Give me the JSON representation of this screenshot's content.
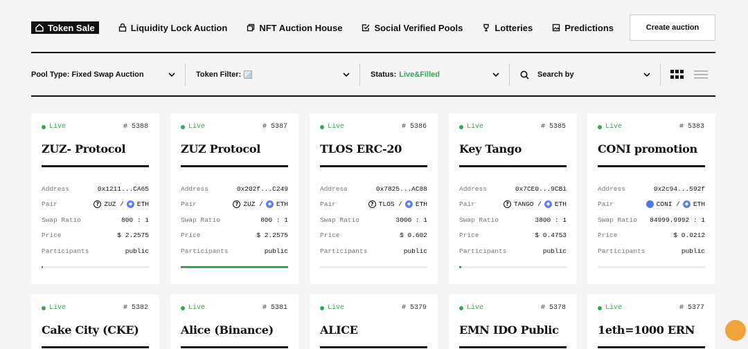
{
  "nav": {
    "tabs": [
      {
        "label": "Token Sale",
        "icon": "home-icon"
      },
      {
        "label": "Liquidity Lock Auction",
        "icon": "lock-icon"
      },
      {
        "label": "NFT Auction House",
        "icon": "nft-icon"
      },
      {
        "label": "Social Verified Pools",
        "icon": "check-square-icon"
      },
      {
        "label": "Lotteries",
        "icon": "trophy-icon"
      },
      {
        "label": "Predictions",
        "icon": "image-icon"
      }
    ],
    "create_label": "Create auction"
  },
  "filters": {
    "pool_type_label": "Pool Type: Fixed Swap Auction",
    "token_filter_label": "Token Filter:",
    "status_label": "Status:",
    "status_value": "Live&Filled",
    "search_label": "Search by"
  },
  "colors": {
    "live": "#2fa84f",
    "fab": "#f2a33a"
  },
  "cards": [
    {
      "status": "Live",
      "number": "# 5388",
      "title": "ZUZ- Protocol",
      "address": "0x1211...CA65",
      "pair_token": "ZUZ",
      "pair_base": "ETH",
      "ratio": "800 : 1",
      "price": "$ 2.2575",
      "participants": "public",
      "progress": 0.01
    },
    {
      "status": "Live",
      "number": "# 5387",
      "title": "ZUZ Protocol",
      "address": "0x202f...C249",
      "pair_token": "ZUZ",
      "pair_base": "ETH",
      "ratio": "800 : 1",
      "price": "$ 2.2575",
      "participants": "public",
      "progress": 1.0
    },
    {
      "status": "Live",
      "number": "# 5386",
      "title": "TLOS ERC-20",
      "address": "0x7825...AC88",
      "pair_token": "TLOS",
      "pair_base": "ETH",
      "ratio": "3000 : 1",
      "price": "$ 0.602",
      "participants": "public",
      "progress": 0.0
    },
    {
      "status": "Live",
      "number": "# 5385",
      "title": "Key Tango",
      "address": "0x7CE0...9CB1",
      "pair_token": "TANGO",
      "pair_base": "ETH",
      "ratio": "3800 : 1",
      "price": "$ 0.4753",
      "participants": "public",
      "progress": 0.02
    },
    {
      "status": "Live",
      "number": "# 5383",
      "title": "CONI promotion",
      "address": "0x2c94...592f",
      "pair_token": "CONI",
      "pair_base": "ETH",
      "ratio": "84999.9992 : 1",
      "price": "$ 0.0212",
      "participants": "public",
      "progress": 0.0
    }
  ],
  "cards_row2": [
    {
      "status": "Live",
      "number": "# 5382",
      "title": "Cake City (CKE)"
    },
    {
      "status": "Live",
      "number": "# 5381",
      "title": "Alice (Binance)"
    },
    {
      "status": "Live",
      "number": "# 5379",
      "title": "ALICE"
    },
    {
      "status": "Live",
      "number": "# 5378",
      "title": "EMN IDO Public"
    },
    {
      "status": "Live",
      "number": "# 5377",
      "title": "1eth=1000 ERN"
    }
  ],
  "labels": {
    "address": "Address",
    "pair": "Pair",
    "swap_ratio": "Swap Ratio",
    "price": "Price",
    "participants": "Participants"
  }
}
